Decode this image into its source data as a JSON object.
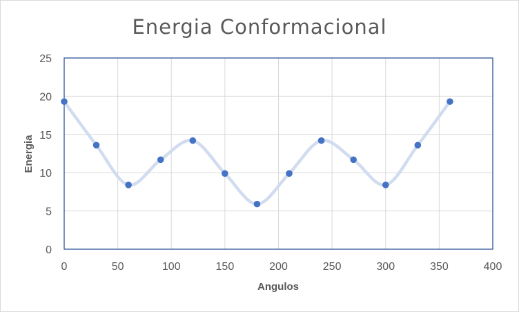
{
  "chart_data": {
    "type": "scatter",
    "title": "Energia Conformacional",
    "xlabel": "Angulos",
    "ylabel": "Energia",
    "xlim": [
      0,
      400
    ],
    "ylim": [
      0,
      25
    ],
    "x_ticks": [
      "0",
      "50",
      "100",
      "150",
      "200",
      "250",
      "300",
      "350",
      "400"
    ],
    "y_ticks": [
      "0",
      "5",
      "10",
      "15",
      "20",
      "25"
    ],
    "grid": true,
    "smoothed_line": true,
    "series": [
      {
        "x": [
          0,
          30,
          60,
          90,
          120,
          150,
          180,
          210,
          240,
          270,
          300,
          330,
          360
        ],
        "y": [
          19.3,
          13.6,
          8.4,
          11.7,
          14.2,
          9.9,
          5.9,
          9.9,
          14.2,
          11.7,
          8.4,
          13.6,
          19.3
        ],
        "marker_color": "#4472c4",
        "line_color": "#d2dcf0"
      }
    ],
    "plot_border_color": "#2f5597",
    "grid_color": "#d9d9d9"
  }
}
